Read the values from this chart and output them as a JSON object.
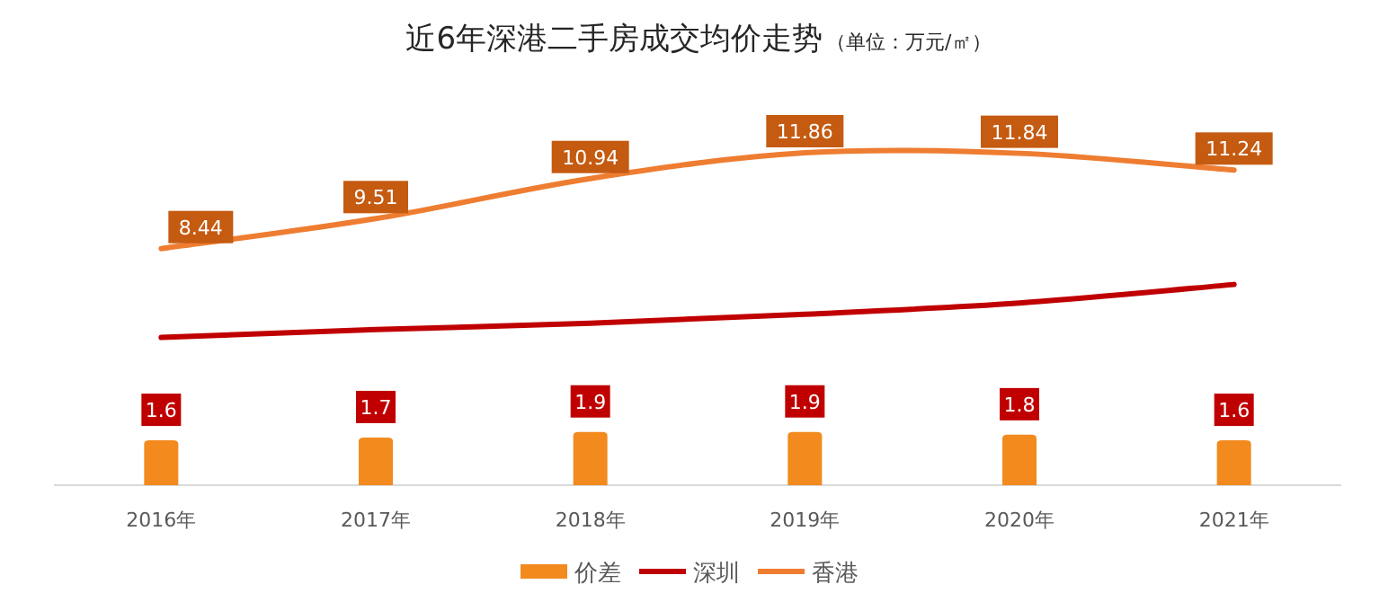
{
  "chart_data": {
    "type": "bar",
    "title": "近6年深港二手房成交均价走势",
    "subtitle": "（单位：万元/㎡）",
    "categories": [
      "2016年",
      "2017年",
      "2018年",
      "2019年",
      "2020年",
      "2021年"
    ],
    "series": [
      {
        "name": "价差",
        "color": "#f28a1e",
        "values": [
          1.6,
          1.7,
          1.9,
          1.9,
          1.8,
          1.6
        ],
        "value_labels": [
          "1.6",
          "1.7",
          "1.9",
          "1.9",
          "1.8",
          "1.6"
        ]
      },
      {
        "name": "深圳",
        "type": "line",
        "color": "#c00000",
        "values": [
          5.27,
          5.55,
          5.78,
          6.1,
          6.5,
          7.16
        ]
      },
      {
        "name": "香港",
        "type": "line",
        "color": "#ee7d31",
        "values": [
          8.44,
          9.51,
          10.94,
          11.86,
          11.84,
          11.24
        ],
        "value_labels": [
          "8.44",
          "9.51",
          "10.94",
          "11.86",
          "11.84",
          "11.24"
        ]
      }
    ],
    "legend": "bottom"
  }
}
